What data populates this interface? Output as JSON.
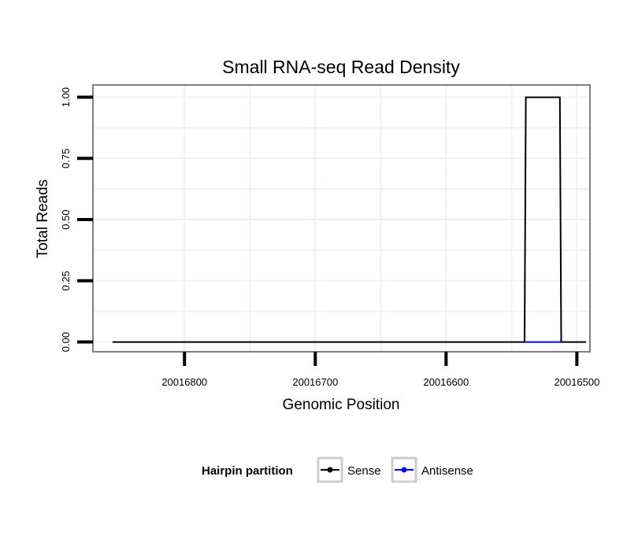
{
  "chart_data": {
    "type": "line",
    "title": "Small RNA-seq Read Density",
    "xlabel": "Genomic Position",
    "ylabel": "Total Reads",
    "x_reversed": true,
    "xlim": [
      20016870,
      20016490
    ],
    "ylim": [
      -0.04,
      1.05
    ],
    "x_ticks": [
      20016800,
      20016700,
      20016600,
      20016500
    ],
    "x_tick_labels": [
      "20016800",
      "20016700",
      "20016600",
      "20016500"
    ],
    "y_ticks": [
      0,
      0.25,
      0.5,
      0.75,
      1.0
    ],
    "y_tick_labels": [
      "0.00",
      "0.25",
      "0.50",
      "0.75",
      "1.00"
    ],
    "grid": true,
    "legend_position": "bottom",
    "legend_title": "Hairpin partition",
    "series": [
      {
        "name": "Sense",
        "color": "#000000",
        "x": [
          20016855,
          20016540,
          20016539,
          20016513,
          20016512,
          20016493
        ],
        "y": [
          0,
          0,
          1,
          1,
          0,
          0
        ]
      },
      {
        "name": "Antisense",
        "color": "#0000ff",
        "x": [
          20016540,
          20016512
        ],
        "y": [
          0,
          0
        ]
      }
    ]
  }
}
